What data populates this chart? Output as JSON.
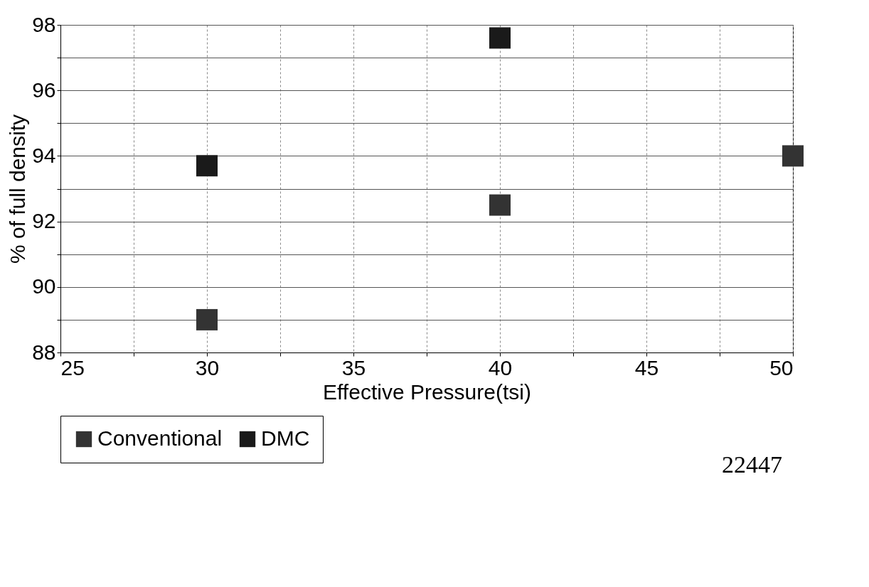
{
  "chart_data": {
    "type": "scatter",
    "xlabel": "Effective Pressure(tsi)",
    "ylabel": "% of full density",
    "series": [
      {
        "name": "Conventional",
        "color": "#333333",
        "x": [
          30,
          40,
          50
        ],
        "values": [
          89.0,
          92.5,
          94.0
        ]
      },
      {
        "name": "DMC",
        "color": "#1a1a1a",
        "x": [
          30,
          40
        ],
        "values": [
          93.7,
          97.6
        ]
      }
    ],
    "xlim": [
      25,
      50
    ],
    "xticks": [
      25,
      {
        "value": 27.5,
        "label": null
      },
      30,
      {
        "value": 32.5,
        "label": null
      },
      35,
      {
        "value": 37.5,
        "label": null
      },
      40,
      {
        "value": 42.5,
        "label": null
      },
      45,
      {
        "value": 47.5,
        "label": null
      },
      50
    ],
    "ylim": [
      88,
      98
    ],
    "yticks": [
      88,
      {
        "value": 89,
        "label": null
      },
      90,
      {
        "value": 91,
        "label": null
      },
      92,
      {
        "value": 93,
        "label": null
      },
      94,
      {
        "value": 95,
        "label": null
      },
      96,
      {
        "value": 97,
        "label": null
      },
      98
    ],
    "grid": true,
    "marker": "square",
    "legend": "bottom",
    "annotations": [
      "22447"
    ]
  }
}
